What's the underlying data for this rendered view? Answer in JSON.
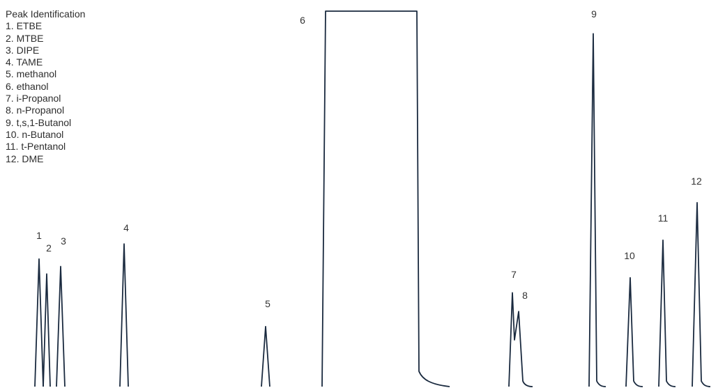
{
  "legend": {
    "title": "Peak Identification",
    "items": [
      "1. ETBE",
      "2. MTBE",
      "3. DIPE",
      "4. TAME",
      "5. methanol",
      "6. ethanol",
      "7. i-Propanol",
      "8. n-Propanol",
      "9. t,s,1-Butanol",
      "10. n-Butanol",
      "11. t-Pentanol",
      "12. DME"
    ]
  },
  "chart_data": {
    "type": "line",
    "title": "",
    "xlabel": "",
    "ylabel": "",
    "grid": false,
    "legend_placement": "top-left",
    "line_color": "#1a2a3f",
    "peaks": [
      {
        "label": "1",
        "height": 0.34
      },
      {
        "label": "2",
        "height": 0.3
      },
      {
        "label": "3",
        "height": 0.32
      },
      {
        "label": "4",
        "height": 0.38
      },
      {
        "label": "5",
        "height": 0.16
      },
      {
        "label": "6",
        "height": 1.0,
        "saturated": true
      },
      {
        "label": "7",
        "height": 0.25
      },
      {
        "label": "8",
        "height": 0.2
      },
      {
        "label": "9",
        "height": 0.94
      },
      {
        "label": "10",
        "height": 0.29
      },
      {
        "label": "11",
        "height": 0.39
      },
      {
        "label": "12",
        "height": 0.49
      }
    ]
  }
}
